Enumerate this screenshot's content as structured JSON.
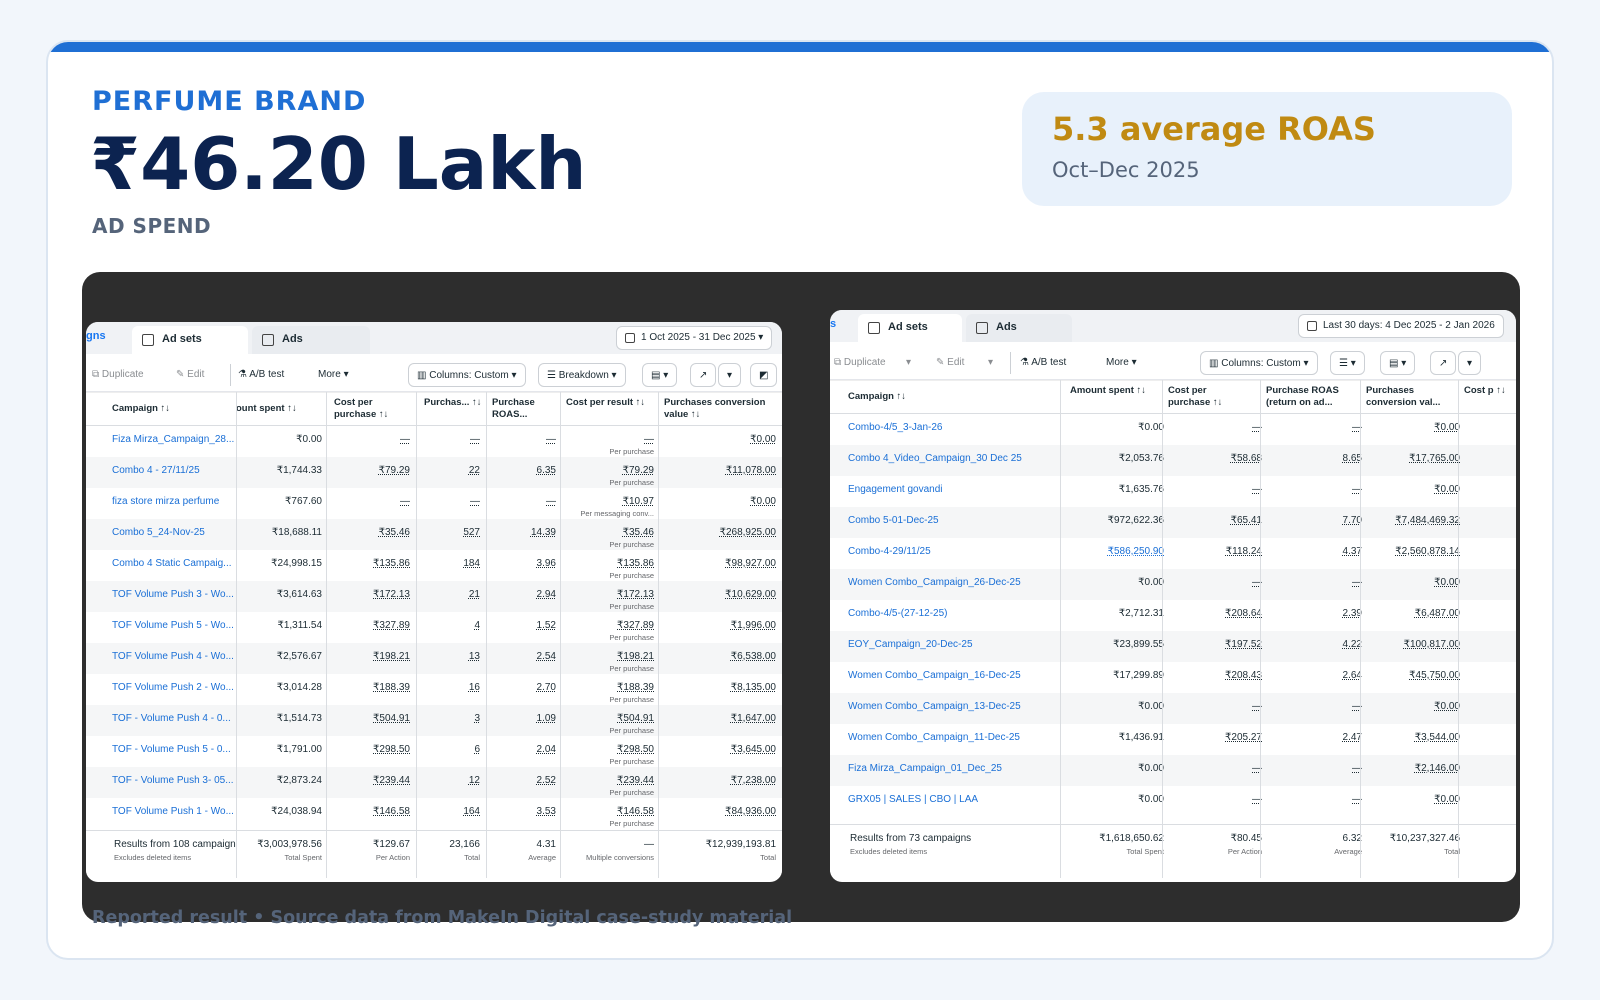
{
  "hero": {
    "eyebrow": "PERFUME BRAND",
    "headline": "₹46.20 Lakh",
    "sublabel": "AD SPEND"
  },
  "stat": {
    "title": "5.3 average ROAS",
    "period": "Oct–Dec 2025"
  },
  "footer": "Reported result • Source data from MakeIn Digital case-study material",
  "colors": {
    "accent": "#1f6fd4",
    "navy": "#0c2350",
    "gold": "#c08a12",
    "link": "#1a6fd6"
  },
  "shot1": {
    "tab_edge": "gns",
    "tabs": [
      "Ad sets",
      "Ads"
    ],
    "date": "1 Oct 2025 - 31 Dec 2025",
    "toolbar": {
      "duplicate": "Duplicate",
      "edit": "Edit",
      "ab": "A/B test",
      "more": "More",
      "columns": "Columns: Custom",
      "breakdown": "Breakdown"
    },
    "headers": [
      "Campaign ↑↓",
      "ount spent ↑↓",
      "Cost per purchase ↑↓",
      "Purchas... ↑↓",
      "Purchase ROAS...",
      "Cost per result ↑↓",
      "Purchases conversion value ↑↓"
    ],
    "rows": [
      {
        "name": "Fiza Mirza_Campaign_28...",
        "spent": "₹0.00",
        "cpp": "—",
        "purch": "—",
        "roas": "—",
        "cpr": "—",
        "cpr_sub": "Per purchase",
        "value": "₹0.00"
      },
      {
        "name": "Combo 4 - 27/11/25",
        "spent": "₹1,744.33",
        "cpp": "₹79.29",
        "purch": "22",
        "roas": "6.35",
        "cpr": "₹79.29",
        "cpr_sub": "Per purchase",
        "value": "₹11,078.00"
      },
      {
        "name": "fiza store mirza perfume",
        "spent": "₹767.60",
        "cpp": "—",
        "purch": "—",
        "roas": "—",
        "cpr": "₹10.97",
        "cpr_sub": "Per messaging conv...",
        "value": "₹0.00"
      },
      {
        "name": "Combo 5_24-Nov-25",
        "spent": "₹18,688.11",
        "cpp": "₹35.46",
        "purch": "527",
        "roas": "14.39",
        "cpr": "₹35.46",
        "cpr_sub": "Per purchase",
        "value": "₹268,925.00"
      },
      {
        "name": "Combo 4 Static Campaig...",
        "spent": "₹24,998.15",
        "cpp": "₹135.86",
        "purch": "184",
        "roas": "3.96",
        "cpr": "₹135.86",
        "cpr_sub": "Per purchase",
        "value": "₹98,927.00"
      },
      {
        "name": "TOF Volume Push 3 - Wo...",
        "spent": "₹3,614.63",
        "cpp": "₹172.13",
        "purch": "21",
        "roas": "2.94",
        "cpr": "₹172.13",
        "cpr_sub": "Per purchase",
        "value": "₹10,629.00"
      },
      {
        "name": "TOF Volume Push 5 - Wo...",
        "spent": "₹1,311.54",
        "cpp": "₹327.89",
        "purch": "4",
        "roas": "1.52",
        "cpr": "₹327.89",
        "cpr_sub": "Per purchase",
        "value": "₹1,996.00"
      },
      {
        "name": "TOF Volume Push 4 - Wo...",
        "spent": "₹2,576.67",
        "cpp": "₹198.21",
        "purch": "13",
        "roas": "2.54",
        "cpr": "₹198.21",
        "cpr_sub": "Per purchase",
        "value": "₹6,538.00"
      },
      {
        "name": "TOF Volume Push 2 - Wo...",
        "spent": "₹3,014.28",
        "cpp": "₹188.39",
        "purch": "16",
        "roas": "2.70",
        "cpr": "₹188.39",
        "cpr_sub": "Per purchase",
        "value": "₹8,135.00"
      },
      {
        "name": "TOF - Volume Push 4 - 0...",
        "spent": "₹1,514.73",
        "cpp": "₹504.91",
        "purch": "3",
        "roas": "1.09",
        "cpr": "₹504.91",
        "cpr_sub": "Per purchase",
        "value": "₹1,647.00"
      },
      {
        "name": "TOF - Volume Push 5 - 0...",
        "spent": "₹1,791.00",
        "cpp": "₹298.50",
        "purch": "6",
        "roas": "2.04",
        "cpr": "₹298.50",
        "cpr_sub": "Per purchase",
        "value": "₹3,645.00"
      },
      {
        "name": "TOF - Volume Push 3- 05...",
        "spent": "₹2,873.24",
        "cpp": "₹239.44",
        "purch": "12",
        "roas": "2.52",
        "cpr": "₹239.44",
        "cpr_sub": "Per purchase",
        "value": "₹7,238.00"
      },
      {
        "name": "TOF Volume Push 1 - Wo...",
        "spent": "₹24,038.94",
        "cpp": "₹146.58",
        "purch": "164",
        "roas": "3.53",
        "cpr": "₹146.58",
        "cpr_sub": "Per purchase",
        "value": "₹84,936.00"
      }
    ],
    "footer": {
      "label": "Results from 108 campaign",
      "label_sub": "Excludes deleted items",
      "spent": "₹3,003,978.56",
      "spent_sub": "Total Spent",
      "cpp": "₹129.67",
      "cpp_sub": "Per Action",
      "purch": "23,166",
      "purch_sub": "Total",
      "roas": "4.31",
      "roas_sub": "Average",
      "cpr": "—",
      "cpr_sub": "Multiple conversions",
      "value": "₹12,939,193.81",
      "value_sub": "Total"
    }
  },
  "shot2": {
    "tab_edge": "s",
    "tabs": [
      "Ad sets",
      "Ads"
    ],
    "date": "Last 30 days: 4 Dec 2025 - 2 Jan 2026",
    "toolbar": {
      "duplicate": "Duplicate",
      "edit": "Edit",
      "ab": "A/B test",
      "more": "More",
      "columns": "Columns: Custom"
    },
    "headers": [
      "Campaign ↑↓",
      "Amount spent ↑↓",
      "Cost per purchase ↑↓",
      "Purchase ROAS (return on ad...",
      "Purchases conversion val...",
      "Cost p ↑↓"
    ],
    "rows": [
      {
        "name": "Combo-4/5_3-Jan-26",
        "spent": "₹0.00",
        "cpp": "—",
        "roas": "—",
        "value": "₹0.00"
      },
      {
        "name": "Combo 4_Video_Campaign_30 Dec 25",
        "spent": "₹2,053.76",
        "cpp": "₹58.68",
        "roas": "8.65",
        "value": "₹17,765.00"
      },
      {
        "name": "Engagement govandi",
        "spent": "₹1,635.76",
        "cpp": "—",
        "roas": "—",
        "value": "₹0.00"
      },
      {
        "name": "Combo 5-01-Dec-25",
        "spent": "₹972,622.36",
        "cpp": "₹65.41",
        "roas": "7.70",
        "value": "₹7,484,469.32"
      },
      {
        "name": "Combo-4-29/11/25",
        "spent": "₹586,250.90",
        "cpp": "₹118.24",
        "roas": "4.37",
        "value": "₹2,560,878.14"
      },
      {
        "name": "Women Combo_Campaign_26-Dec-25",
        "spent": "₹0.00",
        "cpp": "—",
        "roas": "—",
        "value": "₹0.00"
      },
      {
        "name": "Combo-4/5-(27-12-25)",
        "spent": "₹2,712.31",
        "cpp": "₹208.64",
        "roas": "2.39",
        "value": "₹6,487.00"
      },
      {
        "name": "EOY_Campaign_20-Dec-25",
        "spent": "₹23,899.55",
        "cpp": "₹197.52",
        "roas": "4.22",
        "value": "₹100,817.00"
      },
      {
        "name": "Women Combo_Campaign_16-Dec-25",
        "spent": "₹17,299.89",
        "cpp": "₹208.43",
        "roas": "2.64",
        "value": "₹45,750.00"
      },
      {
        "name": "Women Combo_Campaign_13-Dec-25",
        "spent": "₹0.00",
        "cpp": "—",
        "roas": "—",
        "value": "₹0.00"
      },
      {
        "name": "Women Combo_Campaign_11-Dec-25",
        "spent": "₹1,436.91",
        "cpp": "₹205.27",
        "roas": "2.47",
        "value": "₹3,544.00"
      },
      {
        "name": "Fiza Mirza_Campaign_01_Dec_25",
        "spent": "₹0.00",
        "cpp": "—",
        "roas": "—",
        "value": "₹2,146.00"
      },
      {
        "name": "GRX05 | SALES | CBO | LAA",
        "spent": "₹0.00",
        "cpp": "—",
        "roas": "—",
        "value": "₹0.00"
      }
    ],
    "footer": {
      "label": "Results from 73 campaigns",
      "label_sub": "Excludes deleted items",
      "spent": "₹1,618,650.62",
      "spent_sub": "Total Spent",
      "cpp": "₹80.45",
      "cpp_sub": "Per Action",
      "roas": "6.32",
      "roas_sub": "Average",
      "value": "₹10,237,327.46",
      "value_sub": "Total"
    }
  }
}
